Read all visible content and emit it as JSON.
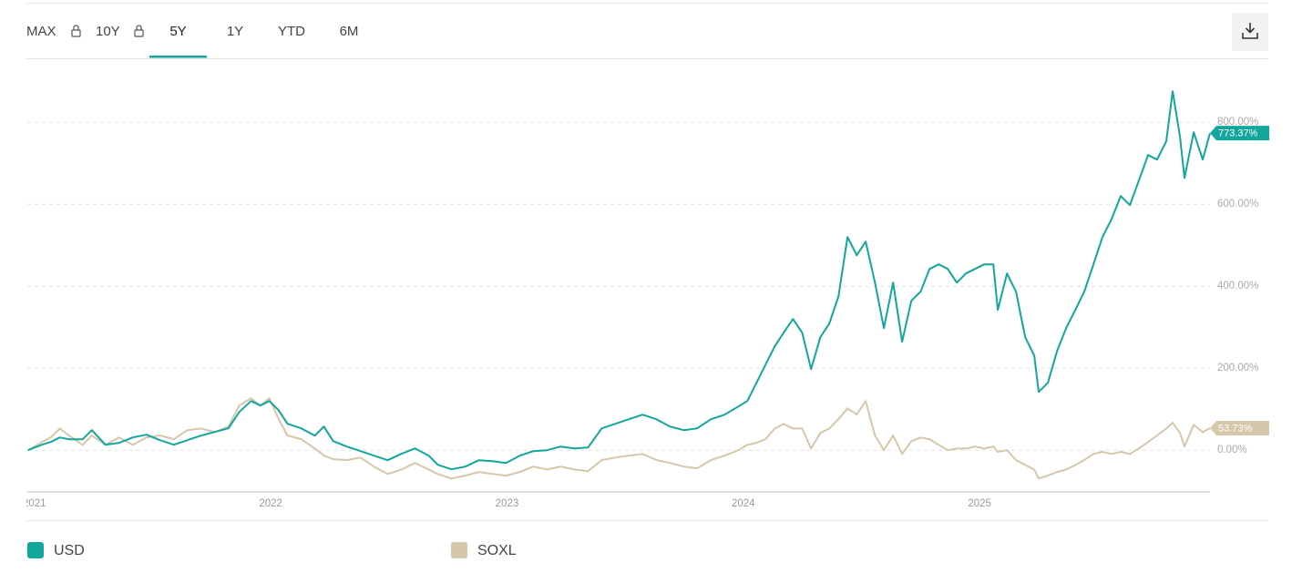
{
  "tabs": [
    "MAX",
    "10Y",
    "5Y",
    "1Y",
    "YTD",
    "6M"
  ],
  "chart_data": {
    "type": "line",
    "x": [
      2020.973,
      2021.031,
      2021.069,
      2021.108,
      2021.146,
      2021.204,
      2021.243,
      2021.301,
      2021.358,
      2021.416,
      2021.474,
      2021.532,
      2021.59,
      2021.647,
      2021.705,
      2021.763,
      2021.821,
      2021.867,
      2021.917,
      2021.956,
      2021.994,
      2022.033,
      2022.071,
      2022.129,
      2022.187,
      2022.225,
      2022.264,
      2022.322,
      2022.38,
      2022.437,
      2022.495,
      2022.553,
      2022.611,
      2022.669,
      2022.707,
      2022.765,
      2022.823,
      2022.881,
      2022.938,
      2022.996,
      2023.054,
      2023.112,
      2023.17,
      2023.227,
      2023.285,
      2023.343,
      2023.401,
      2023.459,
      2023.516,
      2023.574,
      2023.632,
      2023.69,
      2023.748,
      2023.805,
      2023.863,
      2023.921,
      2023.979,
      2024.017,
      2024.056,
      2024.094,
      2024.133,
      2024.171,
      2024.21,
      2024.249,
      2024.287,
      2024.326,
      2024.364,
      2024.403,
      2024.441,
      2024.48,
      2024.518,
      2024.557,
      2024.595,
      2024.634,
      2024.672,
      2024.711,
      2024.75,
      2024.788,
      2024.827,
      2024.865,
      2024.904,
      2024.942,
      2024.981,
      2025.019,
      2025.058,
      2025.077,
      2025.116,
      2025.154,
      2025.193,
      2025.231,
      2025.25,
      2025.289,
      2025.328,
      2025.366,
      2025.405,
      2025.443,
      2025.482,
      2025.52,
      2025.559,
      2025.597,
      2025.636,
      2025.674,
      2025.713,
      2025.751,
      2025.79,
      2025.817,
      2025.848,
      2025.867,
      2025.906,
      2025.944,
      2025.975
    ],
    "series": [
      {
        "name": "USD",
        "color": "#12a69c",
        "last_value_label": "773.37%",
        "values": [
          0,
          13.3,
          20,
          31.1,
          26.7,
          26.7,
          48.9,
          13.3,
          17.8,
          31.1,
          37.8,
          24.4,
          13.3,
          24.4,
          35.6,
          44.4,
          53.3,
          93.3,
          120,
          108.9,
          120,
          97.8,
          64.4,
          53.3,
          35.6,
          57.8,
          22.2,
          8.9,
          -2.2,
          -13.3,
          -24.4,
          -8.9,
          4.4,
          -13.3,
          -35.6,
          -46.7,
          -40,
          -24.4,
          -26.7,
          -31.1,
          -13.3,
          -2.2,
          0,
          8.9,
          4.4,
          6.7,
          53.3,
          64.4,
          75.6,
          86.7,
          75.6,
          57.8,
          48.9,
          53.3,
          75.6,
          86.7,
          106.7,
          120,
          164.4,
          208.9,
          253.3,
          286.7,
          320,
          286.7,
          197.8,
          275.6,
          308.9,
          375.6,
          520,
          475.6,
          508.9,
          408.9,
          297.8,
          408.9,
          264.4,
          364.4,
          386.7,
          442.2,
          453.3,
          442.2,
          408.9,
          431.1,
          442.2,
          453.3,
          453.3,
          342.2,
          431.1,
          386.7,
          275.6,
          231.1,
          142.2,
          164.4,
          242.2,
          297.8,
          342.2,
          386.7,
          453.3,
          520,
          564.4,
          620,
          597.8,
          657.8,
          720,
          708.9,
          753.3,
          875.6,
          764.4,
          664,
          775.6,
          708.9,
          773.37
        ]
      },
      {
        "name": "SOXL",
        "color": "#d6c6aa",
        "last_value_label": "53.73%",
        "values": [
          0,
          20,
          31,
          53,
          36,
          13,
          36,
          13,
          31,
          13,
          31,
          36,
          27,
          49,
          53,
          44,
          58,
          109,
          127,
          109,
          127,
          76,
          36,
          27,
          4,
          -13,
          -22,
          -24,
          -18,
          -40,
          -58,
          -47,
          -31,
          -47,
          -58,
          -69,
          -62,
          -53,
          -58,
          -62,
          -53,
          -40,
          -47,
          -40,
          -47,
          -51,
          -24,
          -18,
          -13,
          -9,
          -24,
          -31,
          -40,
          -44,
          -24,
          -13,
          0,
          13,
          18,
          27,
          53,
          64,
          53,
          53,
          4,
          42,
          53,
          76,
          102,
          87,
          120,
          36,
          0,
          36,
          -9,
          22,
          31,
          27,
          13,
          0,
          4,
          4,
          9,
          4,
          9,
          -4,
          0,
          -24,
          -36,
          -47,
          -69,
          -62,
          -53,
          -47,
          -36,
          -24,
          -9,
          -4,
          -9,
          -4,
          -9,
          4,
          20,
          36,
          53,
          67,
          42,
          9,
          62,
          44,
          53.73
        ]
      }
    ],
    "xlim": [
      2020.97,
      2025.975
    ],
    "xticks": [
      2021,
      2022,
      2023,
      2024,
      2025
    ],
    "ylim": [
      -100,
      920
    ],
    "yticks": [
      {
        "value": 0,
        "label": "0.00%"
      },
      {
        "value": 200,
        "label": "200.00%"
      },
      {
        "value": 400,
        "label": "400.00%"
      },
      {
        "value": 600,
        "label": "600.00%"
      },
      {
        "value": 800,
        "label": "800.00%"
      }
    ],
    "grid": true,
    "legend": "bottom"
  }
}
